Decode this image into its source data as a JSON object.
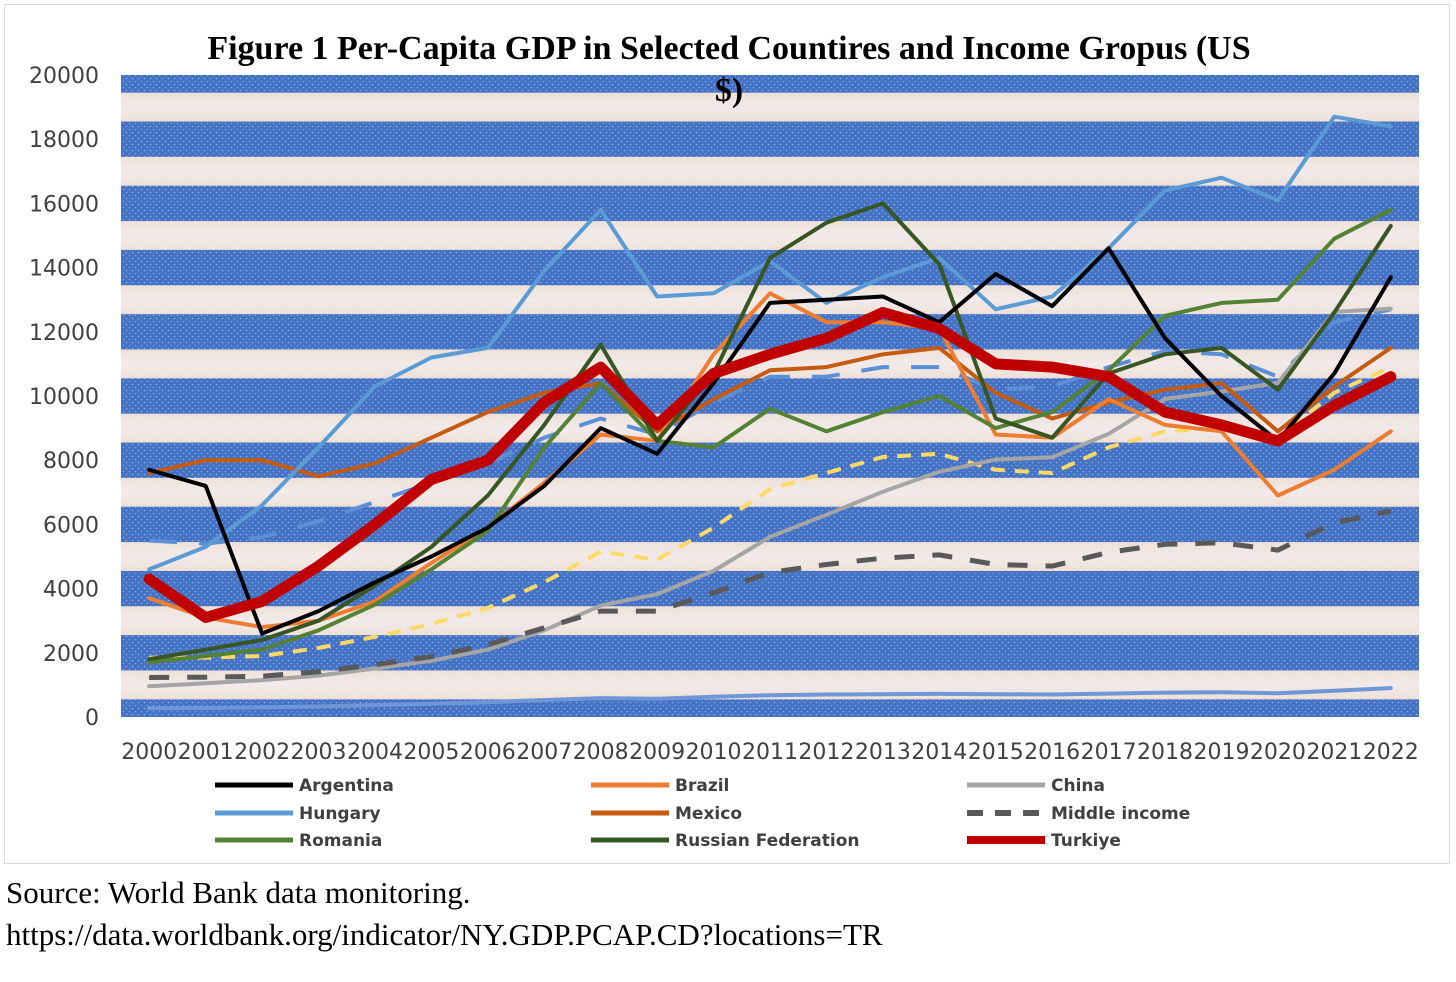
{
  "chart_data": {
    "type": "line",
    "title_lines": [
      "Figure 1 Per-Capita GDP in Selected Countires and Income Gropus (US",
      "$)"
    ],
    "xlabel": "",
    "ylabel": "",
    "ylim": [
      0,
      20000
    ],
    "yticks": [
      "0",
      "2000",
      "4000",
      "6000",
      "8000",
      "10000",
      "12000",
      "14000",
      "16000",
      "18000",
      "20000"
    ],
    "categories": [
      "2000",
      "2001",
      "2002",
      "2003",
      "2004",
      "2005",
      "2006",
      "2007",
      "2008",
      "2009",
      "2010",
      "2011",
      "2012",
      "2013",
      "2014",
      "2015",
      "2016",
      "2017",
      "2018",
      "2019",
      "2020",
      "2021",
      "2022"
    ],
    "legend_position": "bottom",
    "series": [
      {
        "name": "Argentina",
        "color": "#000000",
        "width": 4,
        "dash": "",
        "values": [
          7700,
          7200,
          2600,
          3300,
          4200,
          5000,
          5900,
          7200,
          9000,
          8200,
          10400,
          12900,
          13000,
          13100,
          12300,
          13800,
          12800,
          14600,
          11800,
          10000,
          8600,
          10700,
          13700
        ]
      },
      {
        "name": "Brazil",
        "color": "#ed7d31",
        "width": 4,
        "dash": "",
        "values": [
          3700,
          3100,
          2800,
          3000,
          3600,
          4800,
          5900,
          7300,
          8800,
          8600,
          11300,
          13200,
          12300,
          12300,
          12100,
          8800,
          8700,
          9900,
          9100,
          8900,
          6900,
          7700,
          8900
        ]
      },
      {
        "name": "China",
        "color": "#a5a5a5",
        "width": 4,
        "dash": "",
        "values": [
          960,
          1050,
          1150,
          1290,
          1510,
          1750,
          2100,
          2700,
          3470,
          3830,
          4550,
          5610,
          6300,
          7020,
          7640,
          8020,
          8090,
          8820,
          9910,
          10140,
          10410,
          12620,
          12720
        ]
      },
      {
        "name": "Hungary",
        "color": "#5b9bd5",
        "width": 4,
        "dash": "",
        "values": [
          4600,
          5300,
          6600,
          8400,
          10300,
          11200,
          11500,
          13900,
          15800,
          13100,
          13200,
          14200,
          12900,
          13700,
          14300,
          12700,
          13100,
          14600,
          16400,
          16800,
          16100,
          18700,
          18400
        ]
      },
      {
        "name": "Mexico",
        "color": "#c55a11",
        "width": 4,
        "dash": "",
        "values": [
          7600,
          8000,
          8000,
          7500,
          7900,
          8700,
          9500,
          10100,
          10400,
          8900,
          9900,
          10800,
          10900,
          11300,
          11500,
          10100,
          9300,
          9800,
          10200,
          10400,
          8900,
          10300,
          11500
        ]
      },
      {
        "name": "Middle income",
        "color": "#595959",
        "width": 5,
        "dash": "20 18",
        "values": [
          1230,
          1240,
          1270,
          1410,
          1630,
          1880,
          2250,
          2780,
          3300,
          3300,
          3870,
          4500,
          4750,
          4950,
          5050,
          4750,
          4700,
          5130,
          5380,
          5430,
          5200,
          6050,
          6420
        ]
      },
      {
        "name": "Romania",
        "color": "#548235",
        "width": 4,
        "dash": "",
        "values": [
          1700,
          1900,
          2100,
          2700,
          3500,
          4600,
          5800,
          8400,
          10400,
          8600,
          8400,
          9600,
          8900,
          9500,
          10000,
          9000,
          9500,
          10800,
          12500,
          12900,
          13000,
          14900,
          15800
        ]
      },
      {
        "name": "Russian Federation",
        "color": "#375623",
        "width": 4,
        "dash": "",
        "values": [
          1800,
          2100,
          2400,
          3000,
          4100,
          5300,
          6900,
          9100,
          11600,
          8600,
          10700,
          14300,
          15400,
          16000,
          14100,
          9300,
          8700,
          10700,
          11300,
          11500,
          10200,
          12600,
          15300
        ]
      },
      {
        "name": "Turkiye",
        "color": "#c00000",
        "width": 11,
        "dash": "",
        "values": [
          4300,
          3100,
          3600,
          4700,
          6000,
          7400,
          8000,
          9800,
          10900,
          9100,
          10700,
          11300,
          11800,
          12600,
          12100,
          11000,
          10900,
          10600,
          9500,
          9100,
          8600,
          9700,
          10600
        ]
      }
    ],
    "unlabeled_series": [
      {
        "color": "#5b8fd6",
        "width": 4,
        "dash": "28 22",
        "values": [
          5500,
          5400,
          5600,
          6100,
          6700,
          7300,
          7900,
          8700,
          9300,
          8800,
          9800,
          10600,
          10600,
          10900,
          10900,
          10200,
          10300,
          10900,
          11400,
          11300,
          10600,
          12300,
          12700
        ]
      },
      {
        "color": "#ffd966",
        "width": 4,
        "dash": "14 10",
        "values": [
          1850,
          1850,
          1900,
          2150,
          2500,
          2900,
          3400,
          4200,
          5150,
          4900,
          5900,
          7100,
          7600,
          8100,
          8200,
          7700,
          7600,
          8400,
          8900,
          9000,
          8700,
          10100,
          10900
        ]
      },
      {
        "color": "#6f97d8",
        "width": 4,
        "dash": "",
        "values": [
          270,
          280,
          300,
          330,
          370,
          410,
          460,
          530,
          590,
          570,
          630,
          680,
          700,
          710,
          720,
          710,
          700,
          730,
          760,
          770,
          740,
          820,
          900
        ]
      }
    ],
    "colors": {
      "plot_band_blue": "#4472c4",
      "plot_band_glow": "#fde9d9",
      "axis_text": "#404040"
    }
  },
  "source": {
    "line1": "Source: World Bank data monitoring.",
    "line2": "https://data.worldbank.org/indicator/NY.GDP.PCAP.CD?locations=TR"
  }
}
